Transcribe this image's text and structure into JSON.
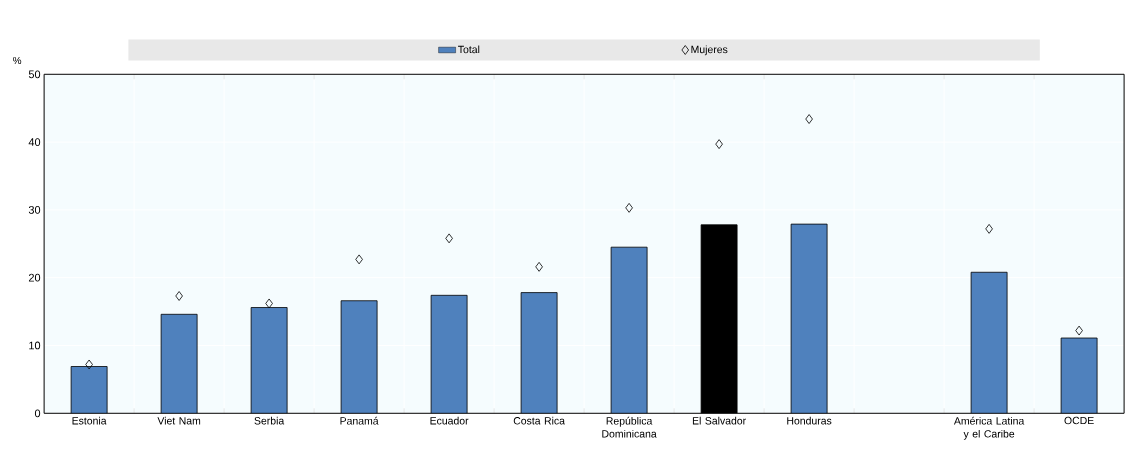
{
  "chart_data": {
    "type": "bar",
    "ylabel": "%",
    "categories": [
      "Estonia",
      "Viet Nam",
      "Serbia",
      "Panamá",
      "Ecuador",
      "Costa Rica",
      "República Dominicana",
      "El Salvador",
      "Honduras",
      null,
      "América Latina y el Caribe",
      "OCDE"
    ],
    "series": [
      {
        "name": "Total",
        "color": "#4f81bd",
        "colors": [
          "#4f81bd",
          "#4f81bd",
          "#4f81bd",
          "#4f81bd",
          "#4f81bd",
          "#4f81bd",
          "#4f81bd",
          "#000000",
          "#4f81bd",
          "#4f81bd",
          "#4f81bd",
          "#4f81bd"
        ],
        "values": [
          6.9,
          14.6,
          15.6,
          16.6,
          17.4,
          17.8,
          24.5,
          27.8,
          27.9,
          null,
          20.8,
          11.1
        ]
      },
      {
        "name": "Mujeres",
        "type": "scatter",
        "color": "#000000",
        "marker": "diamond",
        "values": [
          7.2,
          17.3,
          16.2,
          22.7,
          25.8,
          21.6,
          30.3,
          39.7,
          43.4,
          null,
          27.2,
          12.2
        ]
      }
    ],
    "ylim": [
      0,
      50
    ],
    "yticks": [
      0,
      10,
      20,
      30,
      40,
      50
    ],
    "grid": true,
    "legend": "top"
  }
}
